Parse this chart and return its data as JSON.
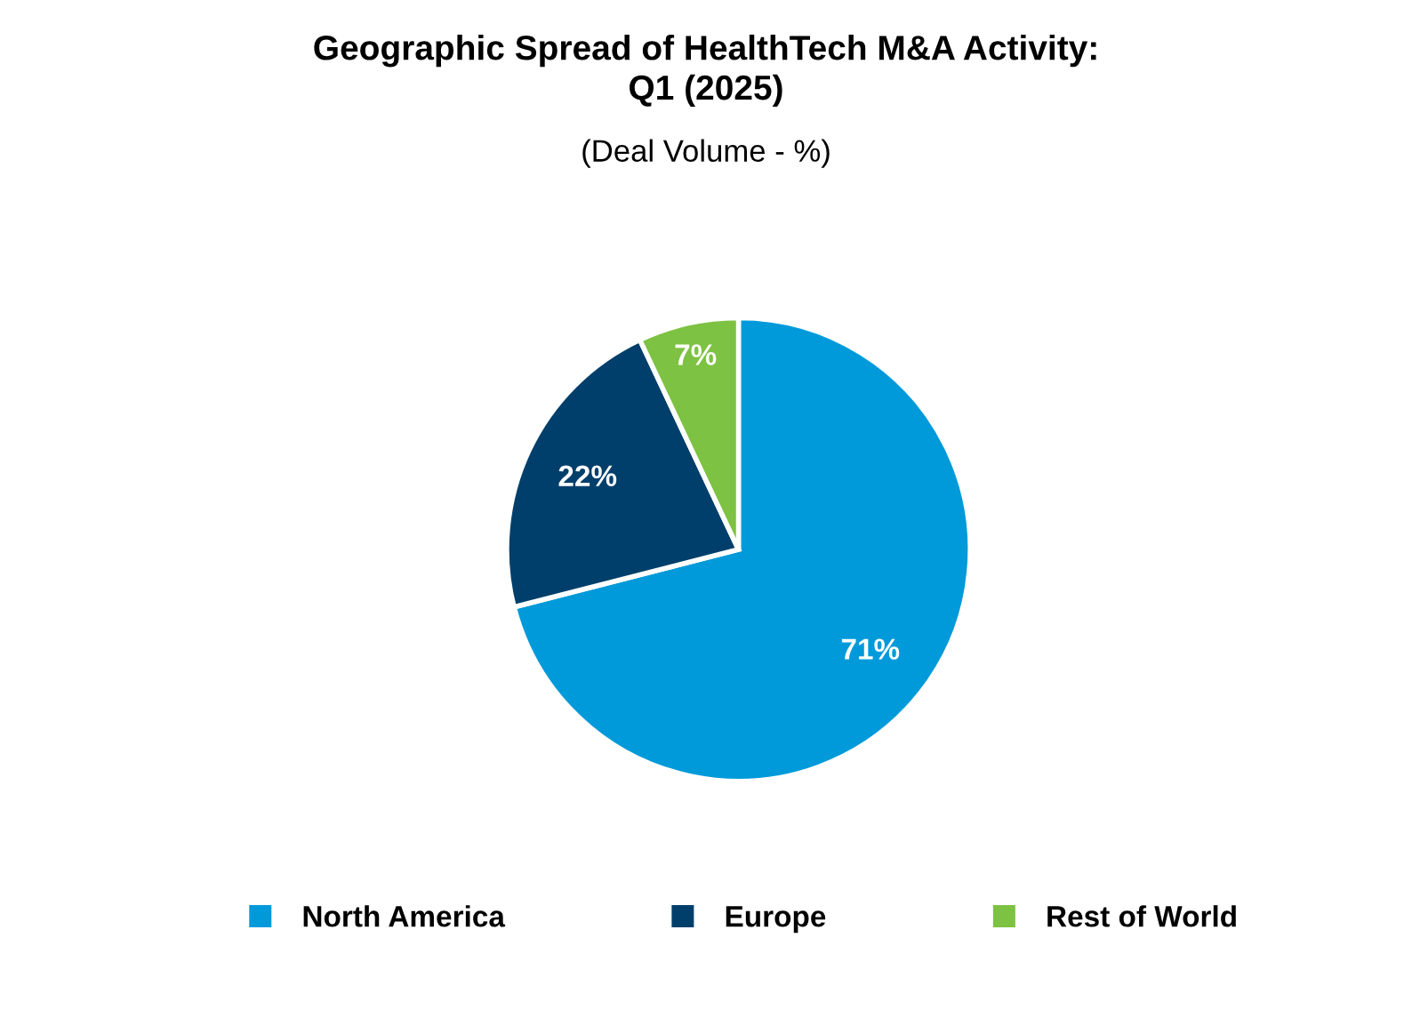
{
  "chart_data": {
    "type": "pie",
    "title": "Geographic Spread of HealthTech M&A Activity:\nQ1 (2025)",
    "subtitle": "(Deal Volume - %)",
    "categories": [
      "North America",
      "Europe",
      "Rest of World"
    ],
    "values": [
      71,
      22,
      7
    ],
    "colors": [
      "#009ada",
      "#003f6b",
      "#7dc242"
    ],
    "value_labels": [
      "71%",
      "22%",
      "7%"
    ],
    "legend": "bottom"
  }
}
